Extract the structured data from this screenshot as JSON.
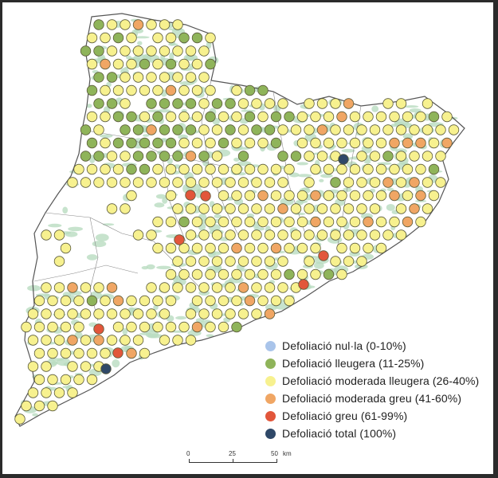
{
  "colors": {
    "frame": "#2b2b2b",
    "land": "#ffffff",
    "forest": "#b9dcc0",
    "outline": "#555555",
    "nulla": "#a9c4ea",
    "lleugera": "#8fb45a",
    "moderada_lleugera": "#f7f18f",
    "moderada_greu": "#f0a664",
    "greu": "#e2563b",
    "total": "#2f4868"
  },
  "legend": [
    {
      "label": "Defoliació  nul·la (0-10%)",
      "color": "#a9c4ea"
    },
    {
      "label": "Defoliació  lleugera (11-25%)",
      "color": "#8fb45a"
    },
    {
      "label": "Defoliació  moderada lleugera (26-40%)",
      "color": "#f7f18f"
    },
    {
      "label": "Defoliació  moderada greu (41-60%)",
      "color": "#f0a664"
    },
    {
      "label": "Defoliació  greu (61-99%)",
      "color": "#e2563b"
    },
    {
      "label": "Defoliació  total (100%)",
      "color": "#2f4868"
    }
  ],
  "scalebar": {
    "ticks": [
      "0",
      "25",
      "50"
    ],
    "unit": "km"
  },
  "map": {
    "point_classes": [
      "lleugera",
      "moderada_lleugera",
      "moderada_greu",
      "greu",
      "total"
    ],
    "point_counts_approx": {
      "lleugera": 60,
      "moderada_lleugera": 380,
      "moderada_greu": 40,
      "greu": 8,
      "total": 2
    }
  }
}
